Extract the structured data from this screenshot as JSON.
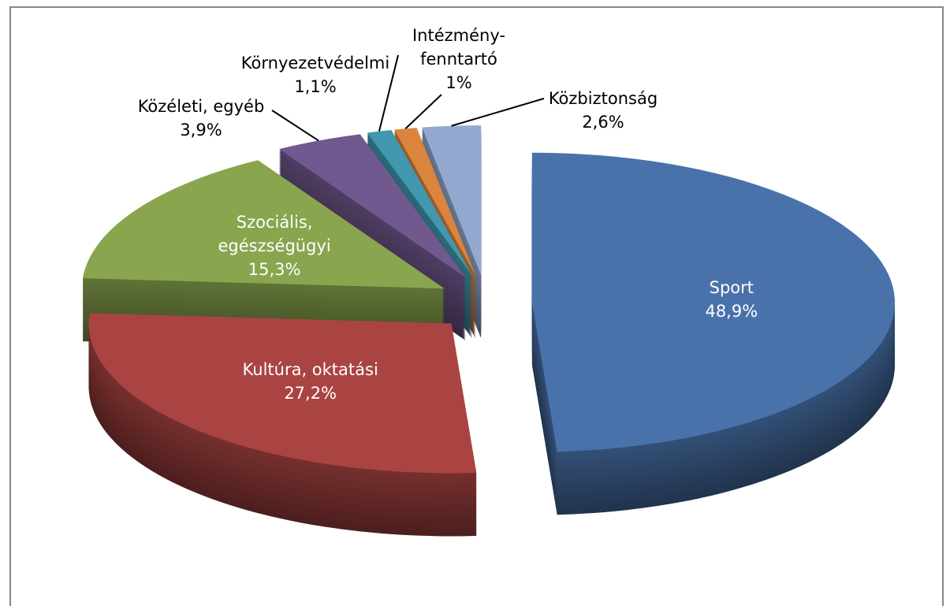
{
  "chart_data": {
    "type": "pie",
    "categories": [
      "Sport",
      "Kultúra, oktatási",
      "Szociális, egészségügyi",
      "Közéleti, egyéb",
      "Környezetvédelmi",
      "Intézmény-fenntartó",
      "Közbiztonság"
    ],
    "values": [
      48.9,
      27.2,
      15.3,
      3.9,
      1.1,
      1,
      2.6
    ],
    "value_labels": [
      "48,9%",
      "27,2%",
      "15,3%",
      "3,9%",
      "1,1%",
      "1%",
      "2,6%"
    ],
    "colors": [
      "#4a72aa",
      "#a94442",
      "#89a54e",
      "#71588f",
      "#4198af",
      "#db843d",
      "#93a9cf"
    ]
  }
}
